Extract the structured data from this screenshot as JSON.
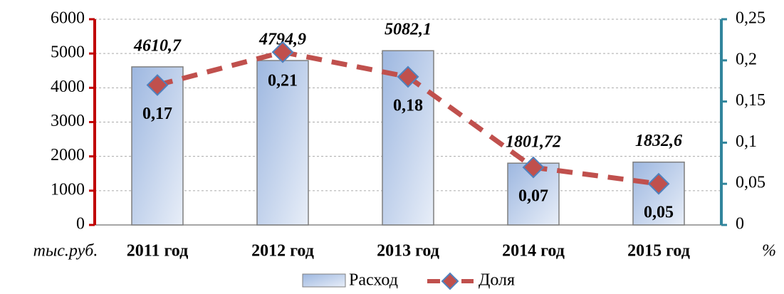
{
  "chart_data": {
    "type": "bar",
    "categories": [
      "2011 год",
      "2012 год",
      "2013 год",
      "2014 год",
      "2015 год"
    ],
    "series": [
      {
        "name": "Расход",
        "color": "#b8cce4",
        "values": [
          4610.7,
          4794.9,
          5082.1,
          1801.72,
          1832.6
        ],
        "value_labels": [
          "4610,7",
          "4794,9",
          "5082,1",
          "1801,72",
          "1832,6"
        ]
      },
      {
        "name": "Доля",
        "color": "#c0504d",
        "axis": "y2",
        "values": [
          0.17,
          0.21,
          0.18,
          0.07,
          0.05
        ],
        "value_labels": [
          "0,17",
          "0,21",
          "0,18",
          "0,07",
          "0,05"
        ]
      }
    ],
    "y_label": "тыс.руб.",
    "y2_label": "%",
    "ylim": [
      0,
      6000
    ],
    "yticks": [
      0,
      1000,
      2000,
      3000,
      4000,
      5000,
      6000
    ],
    "y2lim": [
      0,
      0.25
    ],
    "y2ticks": [
      0,
      {
        "value": 0.05,
        "label": "0,05"
      },
      {
        "value": 0.1,
        "label": "0,1"
      },
      {
        "value": 0.15,
        "label": "0,15"
      },
      {
        "value": 0.2,
        "label": "0,2"
      },
      {
        "value": 0.25,
        "label": "0,25"
      }
    ],
    "grid": true
  }
}
